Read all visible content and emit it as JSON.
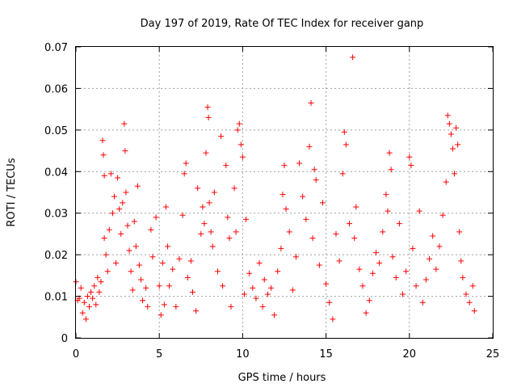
{
  "chart_data": {
    "type": "scatter",
    "title": "Day 197 of 2019, Rate Of TEC Index for receiver ganp",
    "xlabel": "GPS time / hours",
    "ylabel": "ROTI / TECUs",
    "xlim": [
      0,
      25
    ],
    "ylim": [
      0,
      0.07
    ],
    "x_ticks": [
      "0",
      "5",
      "10",
      "15",
      "20",
      "25"
    ],
    "y_ticks": [
      "0",
      "0.01",
      "0.02",
      "0.03",
      "0.04",
      "0.05",
      "0.06",
      "0.07"
    ],
    "grid": true,
    "marker": "plus",
    "color": "#ff0000",
    "series": [
      {
        "points": [
          [
            0.0,
            0.0135
          ],
          [
            0.1,
            0.009
          ],
          [
            0.2,
            0.0095
          ],
          [
            0.3,
            0.012
          ],
          [
            0.4,
            0.006
          ],
          [
            0.5,
            0.0085
          ],
          [
            0.6,
            0.0045
          ],
          [
            0.7,
            0.01
          ],
          [
            0.8,
            0.0075
          ],
          [
            0.9,
            0.011
          ],
          [
            1.0,
            0.0095
          ],
          [
            1.1,
            0.0125
          ],
          [
            1.2,
            0.008
          ],
          [
            1.3,
            0.0145
          ],
          [
            1.4,
            0.011
          ],
          [
            1.5,
            0.0135
          ],
          [
            1.6,
            0.0475
          ],
          [
            1.65,
            0.044
          ],
          [
            1.7,
            0.039
          ],
          [
            1.7,
            0.024
          ],
          [
            1.8,
            0.02
          ],
          [
            1.9,
            0.016
          ],
          [
            2.0,
            0.026
          ],
          [
            2.1,
            0.0395
          ],
          [
            2.2,
            0.03
          ],
          [
            2.3,
            0.034
          ],
          [
            2.4,
            0.018
          ],
          [
            2.5,
            0.0385
          ],
          [
            2.6,
            0.031
          ],
          [
            2.7,
            0.025
          ],
          [
            2.8,
            0.0325
          ],
          [
            2.9,
            0.0515
          ],
          [
            2.95,
            0.045
          ],
          [
            3.0,
            0.035
          ],
          [
            3.1,
            0.027
          ],
          [
            3.2,
            0.021
          ],
          [
            3.3,
            0.016
          ],
          [
            3.4,
            0.0115
          ],
          [
            3.5,
            0.028
          ],
          [
            3.6,
            0.022
          ],
          [
            3.7,
            0.0365
          ],
          [
            3.8,
            0.0175
          ],
          [
            3.9,
            0.014
          ],
          [
            4.0,
            0.009
          ],
          [
            4.2,
            0.012
          ],
          [
            4.3,
            0.0075
          ],
          [
            4.5,
            0.026
          ],
          [
            4.6,
            0.0195
          ],
          [
            4.8,
            0.029
          ],
          [
            5.0,
            0.0125
          ],
          [
            5.1,
            0.0055
          ],
          [
            5.2,
            0.018
          ],
          [
            5.3,
            0.008
          ],
          [
            5.4,
            0.0315
          ],
          [
            5.5,
            0.022
          ],
          [
            5.6,
            0.0125
          ],
          [
            5.8,
            0.0165
          ],
          [
            6.0,
            0.0075
          ],
          [
            6.2,
            0.019
          ],
          [
            6.4,
            0.0295
          ],
          [
            6.5,
            0.0395
          ],
          [
            6.6,
            0.042
          ],
          [
            6.7,
            0.0145
          ],
          [
            6.9,
            0.0185
          ],
          [
            7.0,
            0.011
          ],
          [
            7.2,
            0.0065
          ],
          [
            7.3,
            0.036
          ],
          [
            7.5,
            0.025
          ],
          [
            7.6,
            0.0315
          ],
          [
            7.7,
            0.0275
          ],
          [
            7.8,
            0.0445
          ],
          [
            7.9,
            0.0555
          ],
          [
            7.95,
            0.053
          ],
          [
            8.0,
            0.0325
          ],
          [
            8.1,
            0.0255
          ],
          [
            8.2,
            0.022
          ],
          [
            8.3,
            0.035
          ],
          [
            8.5,
            0.016
          ],
          [
            8.7,
            0.0485
          ],
          [
            8.8,
            0.0125
          ],
          [
            9.0,
            0.0415
          ],
          [
            9.1,
            0.029
          ],
          [
            9.2,
            0.024
          ],
          [
            9.3,
            0.0075
          ],
          [
            9.5,
            0.036
          ],
          [
            9.6,
            0.0255
          ],
          [
            9.7,
            0.05
          ],
          [
            9.8,
            0.0515
          ],
          [
            9.9,
            0.0465
          ],
          [
            10.0,
            0.0435
          ],
          [
            10.1,
            0.0105
          ],
          [
            10.2,
            0.0285
          ],
          [
            10.4,
            0.0155
          ],
          [
            10.6,
            0.012
          ],
          [
            10.8,
            0.0095
          ],
          [
            11.0,
            0.018
          ],
          [
            11.2,
            0.0075
          ],
          [
            11.3,
            0.014
          ],
          [
            11.5,
            0.0105
          ],
          [
            11.7,
            0.012
          ],
          [
            11.9,
            0.0055
          ],
          [
            12.1,
            0.016
          ],
          [
            12.3,
            0.0215
          ],
          [
            12.4,
            0.0345
          ],
          [
            12.5,
            0.0415
          ],
          [
            12.6,
            0.031
          ],
          [
            12.8,
            0.0255
          ],
          [
            13.0,
            0.0115
          ],
          [
            13.2,
            0.0195
          ],
          [
            13.4,
            0.042
          ],
          [
            13.6,
            0.034
          ],
          [
            13.8,
            0.0285
          ],
          [
            14.0,
            0.046
          ],
          [
            14.1,
            0.0565
          ],
          [
            14.2,
            0.024
          ],
          [
            14.3,
            0.0405
          ],
          [
            14.4,
            0.038
          ],
          [
            14.6,
            0.0175
          ],
          [
            14.8,
            0.0325
          ],
          [
            15.0,
            0.013
          ],
          [
            15.2,
            0.0085
          ],
          [
            15.4,
            0.0045
          ],
          [
            15.6,
            0.025
          ],
          [
            15.8,
            0.0185
          ],
          [
            16.0,
            0.0395
          ],
          [
            16.1,
            0.0495
          ],
          [
            16.2,
            0.0465
          ],
          [
            16.4,
            0.0275
          ],
          [
            16.6,
            0.0675
          ],
          [
            16.7,
            0.024
          ],
          [
            16.8,
            0.0315
          ],
          [
            17.0,
            0.0165
          ],
          [
            17.2,
            0.0125
          ],
          [
            17.4,
            0.006
          ],
          [
            17.6,
            0.009
          ],
          [
            17.8,
            0.0155
          ],
          [
            18.0,
            0.0205
          ],
          [
            18.2,
            0.018
          ],
          [
            18.4,
            0.0255
          ],
          [
            18.6,
            0.0345
          ],
          [
            18.7,
            0.0305
          ],
          [
            18.8,
            0.0445
          ],
          [
            18.9,
            0.0405
          ],
          [
            19.0,
            0.0195
          ],
          [
            19.2,
            0.0145
          ],
          [
            19.4,
            0.0275
          ],
          [
            19.6,
            0.0105
          ],
          [
            19.8,
            0.016
          ],
          [
            20.0,
            0.0435
          ],
          [
            20.1,
            0.0415
          ],
          [
            20.2,
            0.0215
          ],
          [
            20.4,
            0.0125
          ],
          [
            20.6,
            0.0305
          ],
          [
            20.8,
            0.0085
          ],
          [
            21.0,
            0.014
          ],
          [
            21.2,
            0.019
          ],
          [
            21.4,
            0.0245
          ],
          [
            21.6,
            0.0165
          ],
          [
            21.8,
            0.022
          ],
          [
            22.0,
            0.0295
          ],
          [
            22.2,
            0.0375
          ],
          [
            22.3,
            0.0535
          ],
          [
            22.4,
            0.0515
          ],
          [
            22.5,
            0.049
          ],
          [
            22.6,
            0.0455
          ],
          [
            22.7,
            0.0395
          ],
          [
            22.8,
            0.0505
          ],
          [
            22.9,
            0.0465
          ],
          [
            23.0,
            0.0255
          ],
          [
            23.1,
            0.0185
          ],
          [
            23.2,
            0.0145
          ],
          [
            23.4,
            0.0105
          ],
          [
            23.6,
            0.0085
          ],
          [
            23.8,
            0.0125
          ],
          [
            23.9,
            0.0065
          ]
        ]
      }
    ]
  }
}
